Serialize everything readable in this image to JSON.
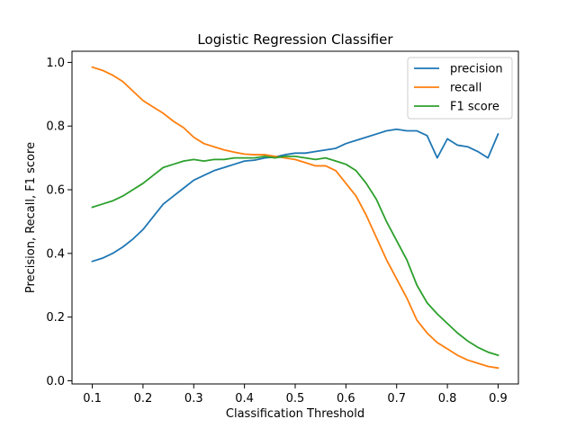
{
  "chart_data": {
    "type": "line",
    "title": "Logistic Regression Classifier",
    "xlabel": "Classification Threshold",
    "ylabel": "Precision, Recall, F1 score",
    "xlim": [
      0.06,
      0.94
    ],
    "ylim": [
      -0.01,
      1.035
    ],
    "xticks": [
      0.1,
      0.2,
      0.3,
      0.4,
      0.5,
      0.6,
      0.7,
      0.8,
      0.9
    ],
    "yticks": [
      0.0,
      0.2,
      0.4,
      0.6,
      0.8,
      1.0
    ],
    "x": [
      0.1,
      0.12,
      0.14,
      0.16,
      0.18,
      0.2,
      0.22,
      0.24,
      0.26,
      0.28,
      0.3,
      0.32,
      0.34,
      0.36,
      0.38,
      0.4,
      0.42,
      0.44,
      0.46,
      0.48,
      0.5,
      0.52,
      0.54,
      0.56,
      0.58,
      0.6,
      0.62,
      0.64,
      0.66,
      0.68,
      0.7,
      0.72,
      0.74,
      0.76,
      0.78,
      0.8,
      0.82,
      0.84,
      0.86,
      0.88,
      0.9
    ],
    "grid": false,
    "legend_position": "top-right",
    "series": [
      {
        "name": "precision",
        "color": "#1f77b4",
        "values": [
          0.375,
          0.385,
          0.4,
          0.42,
          0.445,
          0.475,
          0.515,
          0.555,
          0.58,
          0.605,
          0.63,
          0.645,
          0.66,
          0.67,
          0.68,
          0.69,
          0.693,
          0.7,
          0.703,
          0.71,
          0.715,
          0.715,
          0.72,
          0.725,
          0.73,
          0.745,
          0.755,
          0.765,
          0.775,
          0.785,
          0.79,
          0.785,
          0.785,
          0.77,
          0.7,
          0.76,
          0.74,
          0.735,
          0.72,
          0.7,
          0.775
        ]
      },
      {
        "name": "recall",
        "color": "#ff7f0e",
        "values": [
          0.985,
          0.975,
          0.96,
          0.94,
          0.91,
          0.88,
          0.86,
          0.84,
          0.815,
          0.795,
          0.765,
          0.745,
          0.735,
          0.725,
          0.718,
          0.712,
          0.71,
          0.71,
          0.705,
          0.7,
          0.695,
          0.685,
          0.675,
          0.675,
          0.66,
          0.62,
          0.58,
          0.52,
          0.45,
          0.38,
          0.32,
          0.26,
          0.19,
          0.15,
          0.12,
          0.1,
          0.08,
          0.065,
          0.055,
          0.045,
          0.04
        ]
      },
      {
        "name": "F1 score",
        "color": "#2ca02c",
        "values": [
          0.545,
          0.555,
          0.565,
          0.58,
          0.6,
          0.62,
          0.645,
          0.67,
          0.68,
          0.69,
          0.695,
          0.69,
          0.695,
          0.695,
          0.7,
          0.7,
          0.7,
          0.705,
          0.7,
          0.705,
          0.705,
          0.7,
          0.695,
          0.7,
          0.69,
          0.68,
          0.66,
          0.62,
          0.57,
          0.5,
          0.44,
          0.38,
          0.3,
          0.245,
          0.21,
          0.18,
          0.15,
          0.125,
          0.105,
          0.09,
          0.08
        ]
      }
    ]
  }
}
